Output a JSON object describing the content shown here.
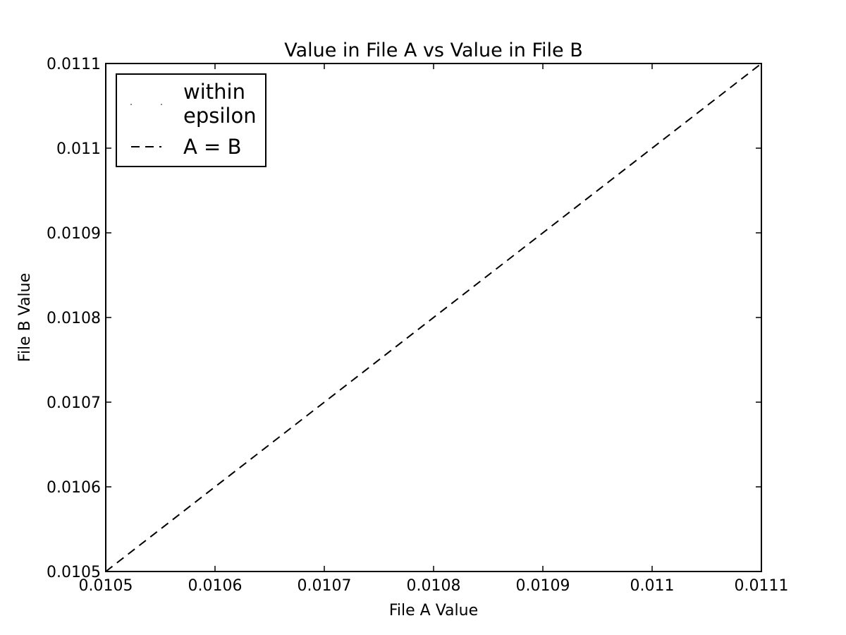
{
  "chart_data": {
    "type": "scatter",
    "title": "Value in File A vs Value in File B",
    "xlabel": "File A Value",
    "ylabel": "File B Value",
    "xlim": [
      0.0105,
      0.0111
    ],
    "ylim": [
      0.0105,
      0.0111
    ],
    "x_ticks": [
      0.0105,
      0.0106,
      0.0107,
      0.0108,
      0.0109,
      0.011,
      0.0111
    ],
    "x_tick_labels": [
      "0.0105",
      "0.0106",
      "0.0107",
      "0.0108",
      "0.0109",
      "0.011",
      "0.0111"
    ],
    "y_ticks": [
      0.0105,
      0.0106,
      0.0107,
      0.0108,
      0.0109,
      0.011,
      0.0111
    ],
    "y_tick_labels": [
      "0.0105",
      "0.0106",
      "0.0107",
      "0.0108",
      "0.0109",
      "0.011",
      "0.0111"
    ],
    "grid": false,
    "legend_position": "top-left",
    "series": [
      {
        "name": "within epsilon",
        "legend_lines": [
          "within",
          "epsilon"
        ],
        "kind": "points",
        "color": "#000000",
        "x": [],
        "y": []
      },
      {
        "name": "A = B",
        "legend_lines": [
          "A = B"
        ],
        "kind": "line",
        "linestyle": "dashed",
        "color": "#000000",
        "x": [
          0.0105,
          0.0111
        ],
        "y": [
          0.0105,
          0.0111
        ]
      }
    ]
  }
}
